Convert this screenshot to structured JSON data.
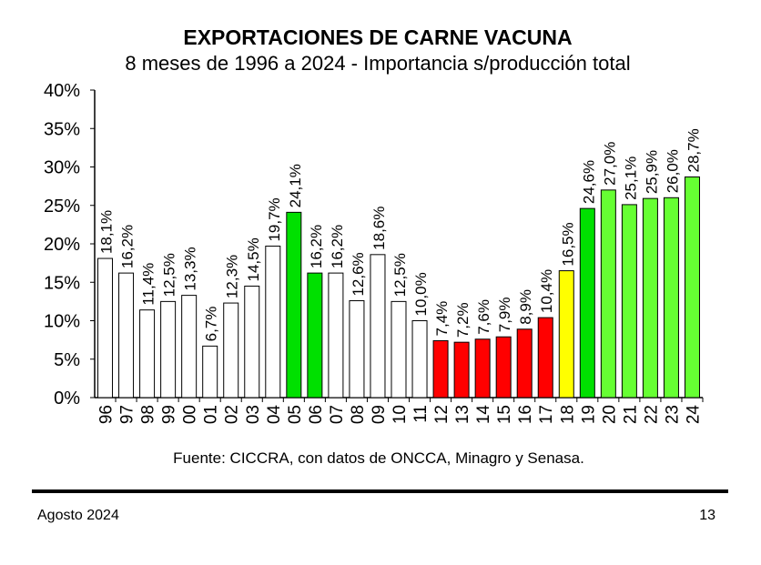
{
  "chart_data": {
    "type": "bar",
    "title": "EXPORTACIONES DE CARNE VACUNA",
    "subtitle": "8 meses de 1996 a 2024 - Importancia s/producción total",
    "categories": [
      "96",
      "97",
      "98",
      "99",
      "00",
      "01",
      "02",
      "03",
      "04",
      "05",
      "06",
      "07",
      "08",
      "09",
      "10",
      "11",
      "12",
      "13",
      "14",
      "15",
      "16",
      "17",
      "18",
      "19",
      "20",
      "21",
      "22",
      "23",
      "24"
    ],
    "values": [
      18.1,
      16.2,
      11.4,
      12.5,
      13.3,
      6.7,
      12.3,
      14.5,
      19.7,
      24.1,
      16.2,
      16.2,
      12.6,
      18.6,
      12.5,
      10.0,
      7.4,
      7.2,
      7.6,
      7.9,
      8.9,
      10.4,
      16.5,
      24.6,
      27.0,
      25.1,
      25.9,
      26.0,
      28.7
    ],
    "data_labels": [
      "18,1%",
      "16,2%",
      "11,4%",
      "12,5%",
      "13,3%",
      "6,7%",
      "12,3%",
      "14,5%",
      "19,7%",
      "24,1%",
      "16,2%",
      "16,2%",
      "12,6%",
      "18,6%",
      "12,5%",
      "10,0%",
      "7,4%",
      "7,2%",
      "7,6%",
      "7,9%",
      "8,9%",
      "10,4%",
      "16,5%",
      "24,6%",
      "27,0%",
      "25,1%",
      "25,9%",
      "26,0%",
      "28,7%"
    ],
    "bar_colors": [
      "#ffffff",
      "#ffffff",
      "#ffffff",
      "#ffffff",
      "#ffffff",
      "#ffffff",
      "#ffffff",
      "#ffffff",
      "#ffffff",
      "#00e000",
      "#00e000",
      "#ffffff",
      "#ffffff",
      "#ffffff",
      "#ffffff",
      "#ffffff",
      "#ff0000",
      "#ff0000",
      "#ff0000",
      "#ff0000",
      "#ff0000",
      "#ff0000",
      "#ffff00",
      "#00e000",
      "#66ff33",
      "#66ff33",
      "#66ff33",
      "#66ff33",
      "#66ff33"
    ],
    "ylim": [
      0,
      40
    ],
    "yticks": [
      "0%",
      "5%",
      "10%",
      "15%",
      "20%",
      "25%",
      "30%",
      "35%",
      "40%"
    ],
    "xlabel": "",
    "ylabel": "",
    "grid": false
  },
  "source": "Fuente: CICCRA, con datos de ONCCA, Minagro y Senasa.",
  "footer": {
    "date": "Agosto 2024",
    "page": "13"
  }
}
